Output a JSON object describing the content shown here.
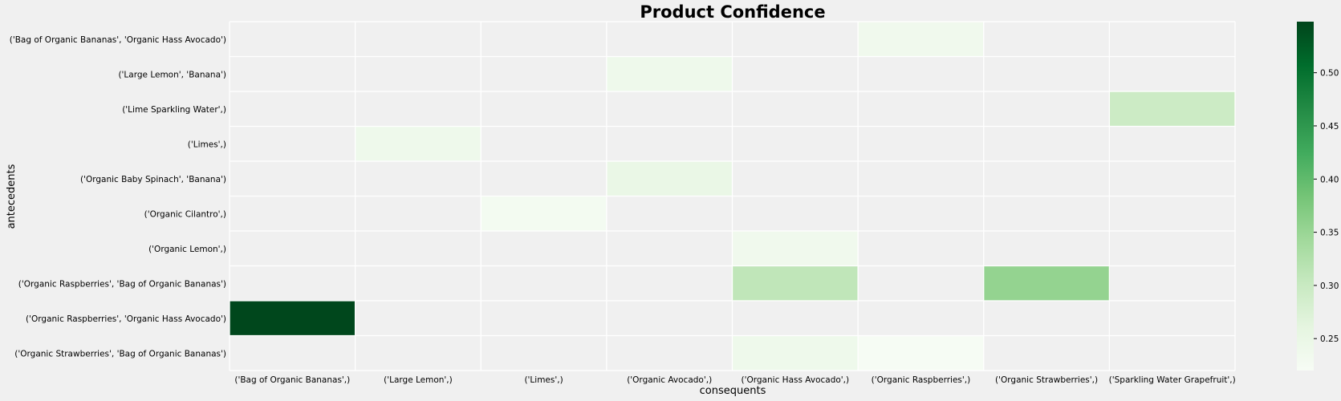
{
  "chart_data": {
    "type": "heatmap",
    "title": "Product Confidence",
    "xlabel": "consequents",
    "ylabel": "antecedents",
    "x_categories": [
      "('Bag of Organic Bananas',)",
      "('Large Lemon',)",
      "('Limes',)",
      "('Organic Avocado',)",
      "('Organic Hass Avocado',)",
      "('Organic Raspberries',)",
      "('Organic Strawberries',)",
      "('Sparkling Water Grapefruit',)"
    ],
    "y_categories": [
      "('Bag of Organic Bananas', 'Organic Hass Avocado')",
      "('Large Lemon', 'Banana')",
      "('Lime Sparkling Water',)",
      "('Limes',)",
      "('Organic Baby Spinach', 'Banana')",
      "('Organic Cilantro',)",
      "('Organic Lemon',)",
      "('Organic Raspberries', 'Bag of Organic Bananas')",
      "('Organic Raspberries', 'Organic Hass Avocado')",
      "('Organic Strawberries', 'Bag of Organic Bananas')"
    ],
    "values": [
      [
        null,
        null,
        null,
        null,
        null,
        0.235,
        null,
        null
      ],
      [
        null,
        null,
        null,
        0.24,
        null,
        null,
        null,
        null
      ],
      [
        null,
        null,
        null,
        null,
        null,
        null,
        null,
        0.295
      ],
      [
        null,
        0.24,
        null,
        null,
        null,
        null,
        null,
        null
      ],
      [
        null,
        null,
        null,
        0.25,
        null,
        null,
        null,
        null
      ],
      [
        null,
        null,
        0.228,
        null,
        null,
        null,
        null,
        null
      ],
      [
        null,
        null,
        null,
        null,
        0.235,
        null,
        null,
        null
      ],
      [
        null,
        null,
        null,
        null,
        0.31,
        null,
        0.355,
        null
      ],
      [
        0.545,
        null,
        null,
        null,
        null,
        null,
        null,
        null
      ],
      [
        null,
        null,
        null,
        null,
        0.24,
        0.222,
        null,
        null
      ]
    ],
    "colorbar": {
      "min": 0.22,
      "max": 0.548,
      "ticks": [
        0.25,
        0.3,
        0.35,
        0.4,
        0.45,
        0.5
      ],
      "tick_labels": [
        "0.25",
        "0.30",
        "0.35",
        "0.40",
        "0.45",
        "0.50"
      ],
      "colormap": "Greens"
    },
    "missing_color": "#f0f0f0",
    "grid_color": "#ffffff"
  }
}
